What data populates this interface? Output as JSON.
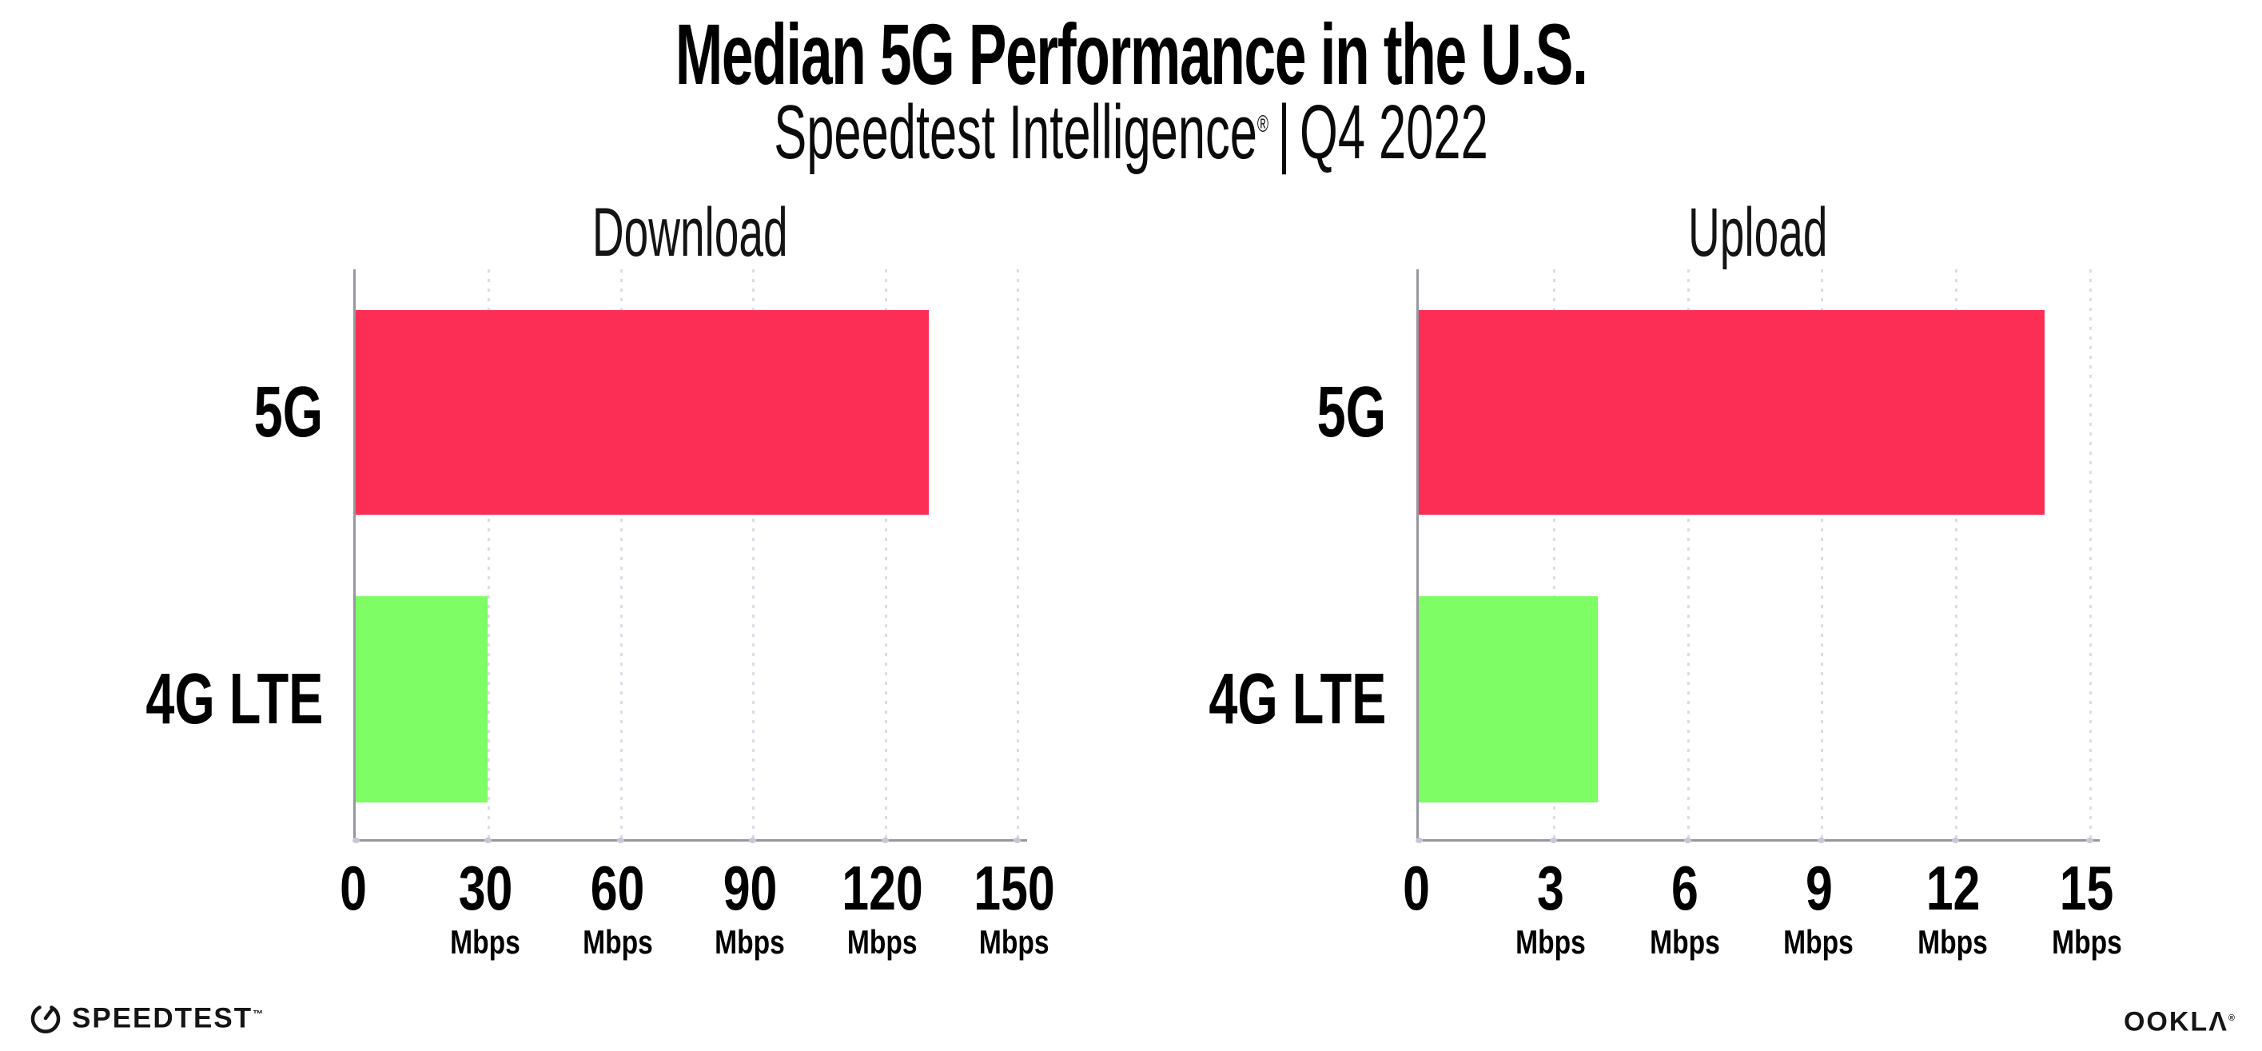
{
  "header": {
    "title": "Median 5G Performance in the U.S.",
    "subtitle_brand": "Speedtest Intelligence",
    "subtitle_reg": "®",
    "subtitle_sep": "|",
    "subtitle_period": "Q4 2022"
  },
  "chart_data": [
    {
      "type": "bar",
      "orientation": "horizontal",
      "title": "Download",
      "categories": [
        "5G",
        "4G LTE"
      ],
      "values": [
        130,
        30
      ],
      "unit": "Mbps",
      "xlim": [
        0,
        150
      ],
      "xticks": [
        0,
        30,
        60,
        90,
        120,
        150
      ],
      "bar_colors": [
        "#fd2e56",
        "#7efd65"
      ],
      "grid": "dotted-vertical",
      "legend": "none"
    },
    {
      "type": "bar",
      "orientation": "horizontal",
      "title": "Upload",
      "categories": [
        "5G",
        "4G LTE"
      ],
      "values": [
        14,
        4
      ],
      "unit": "Mbps",
      "xlim": [
        0,
        15
      ],
      "xticks": [
        0,
        3,
        6,
        9,
        12,
        15
      ],
      "bar_colors": [
        "#fd2e56",
        "#7efd65"
      ],
      "grid": "dotted-vertical",
      "legend": "none"
    }
  ],
  "footer": {
    "speedtest_logo_text": "SPEEDTEST",
    "speedtest_tm": "™",
    "ookla_logo_text": "OOKLΛ",
    "ookla_reg": "®"
  },
  "colors": {
    "bar_5g": "#fd2e56",
    "bar_4g_lte": "#7efd65",
    "axis": "#97979f",
    "gridline": "#dcdce6",
    "text": "#000000",
    "background": "#ffffff"
  }
}
